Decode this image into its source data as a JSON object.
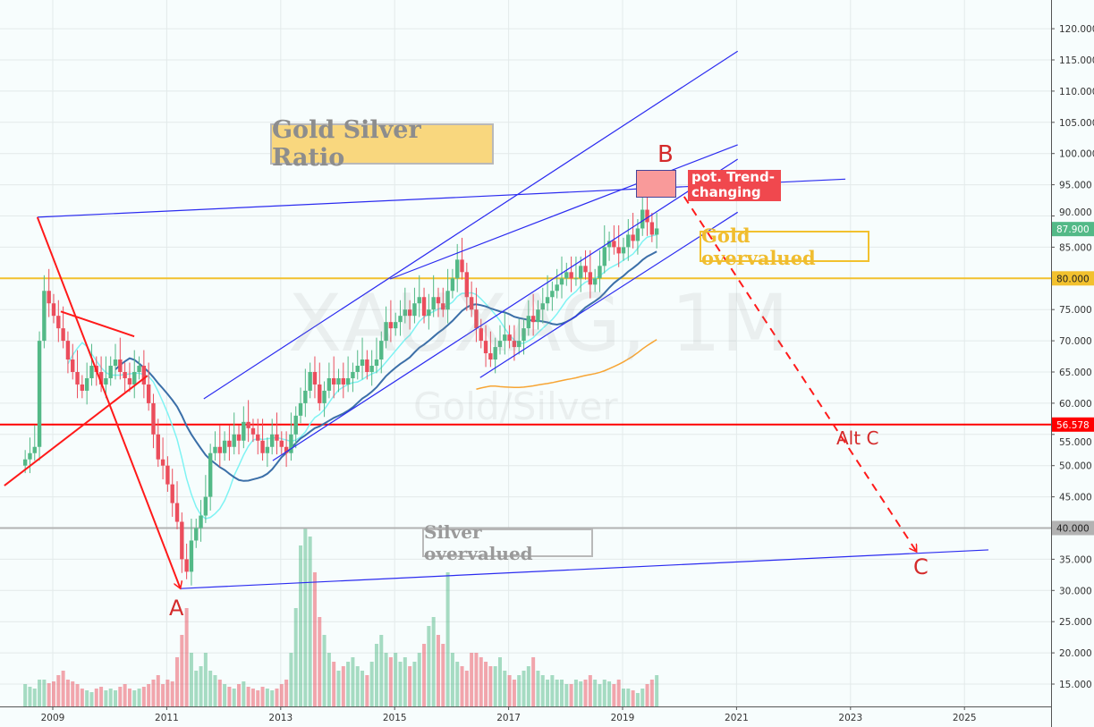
{
  "chart_data": {
    "type": "candlestick",
    "symbol_watermark": "XAUXAG, 1M",
    "subtitle_watermark": "Gold/Silver",
    "title": "Gold Silver Ratio",
    "start": "2008-07",
    "interval": "1M",
    "closes": [
      51,
      52,
      53,
      70,
      78,
      76,
      74,
      72,
      70,
      67,
      65,
      63,
      62,
      64,
      66,
      65,
      63,
      64,
      66,
      67,
      65,
      64,
      63,
      65,
      66,
      63,
      60,
      55,
      51,
      50,
      47,
      44,
      41,
      35,
      33,
      38,
      40,
      42,
      45,
      52,
      53,
      52,
      54,
      53,
      55,
      54,
      57,
      56,
      55,
      54,
      52,
      53,
      55,
      54,
      53,
      52,
      55,
      58,
      60,
      62,
      65,
      63,
      60,
      62,
      64,
      63,
      64,
      63,
      64,
      65,
      66,
      67,
      65,
      66,
      67,
      70,
      73,
      72,
      73,
      74,
      75,
      74,
      76,
      77,
      74,
      75,
      77,
      76,
      75,
      78,
      80,
      83,
      81,
      77,
      75,
      72,
      70,
      68,
      67,
      69,
      70,
      71,
      70,
      69,
      70,
      72,
      74,
      73,
      75,
      76,
      77,
      78,
      79,
      80,
      81,
      80,
      80,
      82,
      81,
      79,
      80,
      82,
      85,
      86,
      85,
      84,
      85,
      87,
      86,
      88,
      91,
      89,
      87,
      88
    ],
    "volume": [
      25,
      22,
      20,
      30,
      30,
      26,
      28,
      35,
      40,
      30,
      28,
      25,
      20,
      18,
      16,
      20,
      22,
      18,
      20,
      18,
      22,
      25,
      20,
      18,
      20,
      22,
      25,
      30,
      35,
      25,
      30,
      28,
      55,
      80,
      110,
      60,
      40,
      45,
      60,
      40,
      35,
      30,
      25,
      22,
      20,
      25,
      28,
      22,
      20,
      18,
      22,
      20,
      18,
      20,
      25,
      30,
      60,
      110,
      180,
      200,
      190,
      150,
      100,
      80,
      60,
      50,
      40,
      45,
      50,
      55,
      45,
      40,
      35,
      50,
      70,
      80,
      60,
      55,
      60,
      50,
      55,
      45,
      50,
      60,
      70,
      90,
      100,
      80,
      70,
      150,
      60,
      50,
      45,
      40,
      60,
      60,
      55,
      50,
      45,
      45,
      55,
      40,
      35,
      30,
      35,
      40,
      45,
      55,
      40,
      35,
      30,
      35,
      30,
      30,
      25,
      25,
      30,
      28,
      30,
      35,
      30,
      25,
      30,
      28,
      25,
      30,
      20,
      20,
      18,
      15,
      20,
      25,
      30,
      35
    ],
    "moving_averages": [
      {
        "period": 10,
        "color": "#7ff3f3"
      },
      {
        "period": 20,
        "color": "#3b6fa8"
      },
      {
        "period": 96,
        "color": "#f7a534"
      }
    ],
    "y_ticks": [
      "15.000",
      "20.000",
      "25.000",
      "30.000",
      "35.000",
      "40.000",
      "45.000",
      "50.000",
      "55.000",
      "60.000",
      "65.000",
      "70.000",
      "75.000",
      "80.000",
      "85.000",
      "90.000",
      "95.000",
      "100.000",
      "105.000",
      "110.000",
      "115.000",
      "120.000"
    ],
    "x_ticks": [
      "2009",
      "2011",
      "2013",
      "2015",
      "2017",
      "2019",
      "2021",
      "2023",
      "2025"
    ],
    "ylim": [
      15,
      120
    ],
    "price_labels": [
      {
        "text": "87.900",
        "value": 87.9,
        "color": "#53b987"
      },
      {
        "text": "80.000",
        "value": 80,
        "color": "#f2c12e"
      },
      {
        "text": "56.578",
        "value": 56.578,
        "color": "#ff0000"
      },
      {
        "text": "40.000",
        "value": 40,
        "color": "#b2b2b2"
      }
    ],
    "horizontal_lines": [
      {
        "value": 80,
        "color": "#f2c12e"
      },
      {
        "value": 56.578,
        "color": "#ff0000"
      },
      {
        "value": 40,
        "color": "#b2b2b2"
      }
    ],
    "trend_lines": [
      {
        "from": [
          2008.73,
          89.8
        ],
        "to": [
          2022.91,
          95.9
        ],
        "color": "#2b2bf0"
      },
      {
        "from": [
          2011.24,
          30.3
        ],
        "to": [
          2025.42,
          36.5
        ],
        "color": "#2b2bf0"
      },
      {
        "from": [
          2011.65,
          60.7
        ],
        "to": [
          2021.02,
          116.4
        ],
        "color": "#2b2bf0"
      },
      {
        "from": [
          2014.92,
          79.9
        ],
        "to": [
          2021.02,
          101.4
        ],
        "color": "#2b2bf0"
      },
      {
        "from": [
          2012.86,
          50.8
        ],
        "to": [
          2021.02,
          99.1
        ],
        "color": "#2b2bf0"
      },
      {
        "from": [
          2016.5,
          64.1
        ],
        "to": [
          2021.02,
          90.6
        ],
        "color": "#2b2bf0"
      },
      {
        "from": [
          2008.73,
          89.8
        ],
        "to": [
          2011.24,
          30.3
        ],
        "color": "#ff1a1a",
        "arrow": true
      },
      {
        "from": [
          2008.15,
          46.8
        ],
        "to": [
          2010.66,
          64.4
        ],
        "color": "#ff1a1a"
      },
      {
        "from": [
          2009.14,
          74.7
        ],
        "to": [
          2010.43,
          70.7
        ],
        "color": "#ff1a1a"
      },
      {
        "from": [
          2020.08,
          93.1
        ],
        "to": [
          2024.16,
          36.2
        ],
        "color": "#ff1a1a",
        "dashed": true,
        "arrow": true
      }
    ],
    "annotations": {
      "wave_a": "A",
      "wave_b": "B",
      "wave_c": "C",
      "alt_c": "Alt C",
      "trend_change": "pot. Trend-changing",
      "gold_overvalued": "Gold overvalued",
      "silver_overvalued": "Silver overvalued"
    }
  }
}
